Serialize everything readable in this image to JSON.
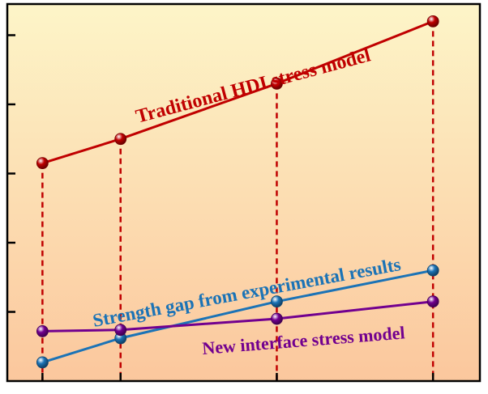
{
  "chart_data": {
    "type": "line",
    "xlabel": "",
    "ylabel": "",
    "x_tick_labels": [],
    "y_tick_labels": [],
    "x": [
      1,
      2,
      4,
      6
    ],
    "xlim": [
      0.55,
      6.6
    ],
    "ylim": [
      0,
      5.45
    ],
    "grid": false,
    "series": [
      {
        "name": "Traditional HDI stress model",
        "x": [
          1,
          2,
          4,
          6
        ],
        "values": [
          3.15,
          3.5,
          4.3,
          5.2
        ],
        "color": "#c00000"
      },
      {
        "name": "Strength gap from experimental results",
        "x": [
          1,
          2,
          4,
          6
        ],
        "values": [
          0.27,
          0.62,
          1.15,
          1.6
        ],
        "color": "#1b73b6"
      },
      {
        "name": "New interface stress model",
        "x": [
          1,
          2,
          4,
          6
        ],
        "values": [
          0.72,
          0.74,
          0.9,
          1.15
        ],
        "color": "#72008f"
      }
    ],
    "drop_lines": {
      "color": "#c00000",
      "style": "dashed",
      "from_series": "Traditional HDI stress model",
      "to": "x-axis"
    },
    "background_gradient": [
      "#fdf5c8",
      "#fbc79d"
    ],
    "annotations": [
      {
        "text": "Traditional HDI stress model",
        "series": 0
      },
      {
        "text": "Strength gap from experimental results",
        "series": 1
      },
      {
        "text": "New interface stress model",
        "series": 2
      }
    ]
  }
}
